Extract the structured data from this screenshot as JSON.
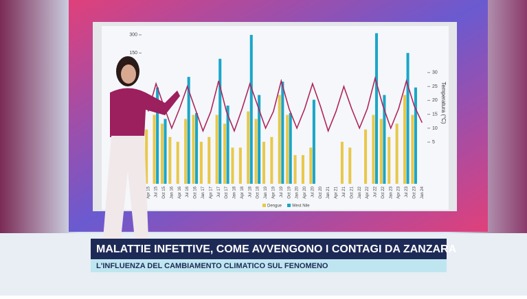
{
  "chart_data": {
    "type": "bar",
    "categories": [
      "Apr 15",
      "Jul 15",
      "Oct 15",
      "Jan 16",
      "Apr 16",
      "Jul 16",
      "Oct 16",
      "Jan 17",
      "Apr 17",
      "Jul 17",
      "Oct 17",
      "Jan 18",
      "Apr 18",
      "Jul 18",
      "Oct 18",
      "Jan 19",
      "Apr 19",
      "Jul 19",
      "Oct 19",
      "Jan 20",
      "Apr 20",
      "Jul 20",
      "Oct 20",
      "Jan 21",
      "Apr 21",
      "Jul 21",
      "Oct 21",
      "Jan 22",
      "Apr 22",
      "Jul 22",
      "Oct 22",
      "Jan 23",
      "Apr 23",
      "Jul 23",
      "Oct 23",
      "Jan 24"
    ],
    "series": [
      {
        "name": "Dengue",
        "color": "#e8c84a",
        "values": [
          8,
          14,
          10,
          6,
          5,
          12,
          14,
          5,
          6,
          14,
          10,
          4,
          4,
          16,
          12,
          5,
          6,
          30,
          14,
          3,
          3,
          4,
          null,
          null,
          null,
          5,
          4,
          null,
          8,
          14,
          12,
          6,
          10,
          30,
          14,
          null
        ]
      },
      {
        "name": "West Nile",
        "color": "#1aa6c8",
        "values": [
          null,
          40,
          12,
          null,
          null,
          60,
          15,
          null,
          null,
          120,
          20,
          null,
          null,
          300,
          30,
          null,
          null,
          50,
          15,
          null,
          null,
          25,
          null,
          null,
          null,
          null,
          null,
          null,
          null,
          320,
          30,
          null,
          null,
          150,
          40,
          null
        ]
      },
      {
        "name": "Temperatura (°C)",
        "color": "#b0245a",
        "axis": "y2",
        "values": [
          16,
          26,
          18,
          10,
          17,
          25,
          17,
          9,
          16,
          27,
          16,
          9,
          17,
          26,
          18,
          10,
          16,
          27,
          17,
          10,
          17,
          26,
          18,
          9,
          16,
          25,
          17,
          10,
          17,
          28,
          18,
          10,
          17,
          27,
          18,
          12
        ]
      }
    ],
    "ylim": [
      1,
      350
    ],
    "yticks": [
      150,
      300
    ],
    "log": true,
    "y2lim": [
      -10,
      45
    ],
    "y2ticks": [
      5,
      10,
      15,
      20,
      25,
      30
    ],
    "legend": "bottom"
  },
  "banner": {
    "headline": "MALATTIE INFETTIVE, COME AVVENGONO I CONTAGI DA ZANZARA",
    "subheadline": "L'INFLUENZA DEL CAMBIAMENTO CLIMATICO SUL FENOMENO"
  }
}
